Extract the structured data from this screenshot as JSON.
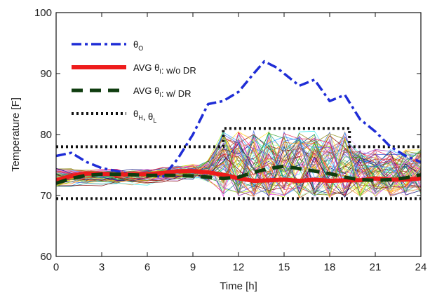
{
  "chart_data": {
    "type": "line",
    "xlabel": "Time [h]",
    "ylabel": "Temperature [F]",
    "xlim": [
      0,
      24
    ],
    "ylim": [
      60,
      100
    ],
    "xticks": [
      0,
      3,
      6,
      9,
      12,
      15,
      18,
      21,
      24
    ],
    "yticks": [
      60,
      70,
      80,
      90,
      100
    ],
    "grid": false,
    "legend_position": "top-left",
    "series": [
      {
        "name": "θO",
        "legend_base": "θ",
        "legend_sub": "O",
        "color": "#1f2dd6",
        "style": "dashdot",
        "x": [
          0,
          1,
          2,
          3,
          4,
          5,
          6,
          7,
          8,
          9,
          10,
          11,
          12,
          13,
          13.7,
          14.5,
          15,
          16,
          17,
          18,
          19,
          20,
          21,
          22,
          23,
          24
        ],
        "y": [
          76.5,
          77,
          75.5,
          74.5,
          74,
          73.5,
          73.5,
          73,
          76,
          80,
          85,
          85.5,
          87,
          90,
          92,
          91,
          90,
          88,
          89,
          85.5,
          86.5,
          82.5,
          80.5,
          78,
          76.5,
          75.5
        ]
      },
      {
        "name": "AVG θI: w/o DR",
        "legend_pre": "AVG θ",
        "legend_sub": "I",
        "legend_post": ": w/o DR",
        "color": "#ee1c1c",
        "style": "solid",
        "x": [
          0,
          1,
          2,
          3,
          4,
          5,
          6,
          7,
          8,
          9,
          10,
          11,
          12,
          13,
          14,
          15,
          16,
          17,
          18,
          19,
          20,
          21,
          22,
          23,
          24
        ],
        "y": [
          72.5,
          73.2,
          73.6,
          73.6,
          73.4,
          73.5,
          73.5,
          73.7,
          74,
          74,
          73.8,
          73.4,
          72.8,
          72.4,
          72.5,
          72.6,
          72.4,
          72.6,
          72.4,
          72.5,
          72.5,
          72.8,
          72.6,
          72.6,
          72.8
        ]
      },
      {
        "name": "AVG θI: w/ DR",
        "legend_pre": "AVG θ",
        "legend_sub": "I",
        "legend_post": ": w/ DR",
        "color": "#0f3d0f",
        "style": "dashed",
        "x": [
          0,
          1,
          2,
          3,
          4,
          5,
          6,
          7,
          8,
          9,
          10,
          11,
          12,
          13,
          14,
          15,
          16,
          17,
          18,
          19,
          20,
          21,
          22,
          23,
          24
        ],
        "y": [
          72.0,
          72.8,
          73.3,
          73.5,
          73.5,
          73.4,
          73.3,
          73.3,
          73.3,
          73.2,
          73.0,
          72.8,
          73.0,
          73.8,
          74.4,
          74.8,
          74.4,
          74.0,
          73.6,
          73.0,
          72.6,
          72.5,
          72.6,
          72.9,
          73.4
        ]
      },
      {
        "name": "θH, θL",
        "legend_base": "θ",
        "legend_sub": "H",
        "legend_mid": ", θ",
        "legend_sub2": "L",
        "color": "#111111",
        "style": "dotted",
        "upper": {
          "x": [
            0,
            11,
            11,
            19.3,
            19.3,
            24
          ],
          "y": [
            78,
            78,
            81,
            81,
            78,
            78
          ]
        },
        "lower": {
          "x": [
            0,
            24
          ],
          "y": [
            69.5,
            69.5
          ]
        }
      }
    ],
    "individual_traces": {
      "count": 70,
      "colors": [
        "#e6194b",
        "#3cb44b",
        "#ffe119",
        "#4363d8",
        "#f58231",
        "#911eb4",
        "#46f0f0",
        "#f032e6",
        "#bcf60c",
        "#fabebe",
        "#008080",
        "#e6beff",
        "#9a6324",
        "#800000",
        "#aaffc3",
        "#808000",
        "#000075",
        "#1aa3ff",
        "#ff7f0e",
        "#2ca02c",
        "#d62728",
        "#9467bd"
      ]
    }
  }
}
